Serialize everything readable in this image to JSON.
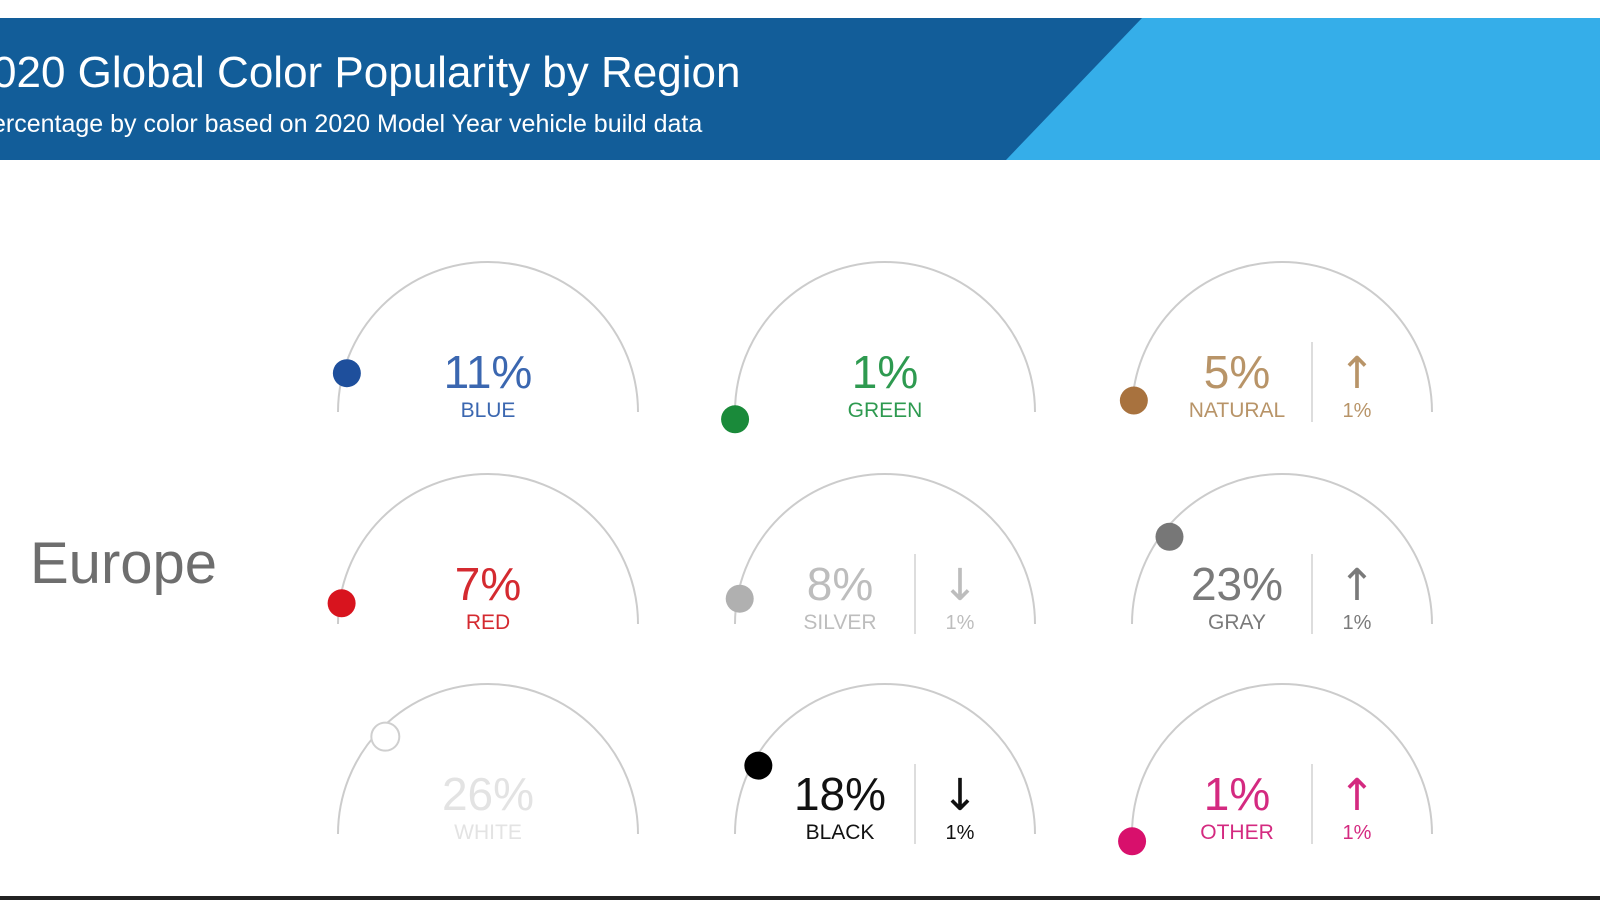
{
  "header": {
    "title": "020 Global Color Popularity by Region",
    "subtitle": "ercentage by color based on 2020 Model Year vehicle build data"
  },
  "region": "Europe",
  "colors": {
    "header_dark": "#125d99",
    "header_light": "#35aee9",
    "arc": "#cccccc"
  },
  "chart_data": {
    "type": "gauge",
    "region": "Europe",
    "unit": "%",
    "items": [
      {
        "label": "BLUE",
        "value": 11,
        "display": "11%",
        "color": "#1e4f9c",
        "text_color": "#3b67b0",
        "change_dir": null,
        "change": null
      },
      {
        "label": "GREEN",
        "value": 1,
        "display": "1%",
        "color": "#1a8a3a",
        "text_color": "#2e9a50",
        "change_dir": null,
        "change": null
      },
      {
        "label": "NATURAL",
        "value": 5,
        "display": "5%",
        "color": "#a8723e",
        "text_color": "#b89468",
        "change_dir": "up",
        "change": "1%"
      },
      {
        "label": "RED",
        "value": 7,
        "display": "7%",
        "color": "#d8141e",
        "text_color": "#d42a30",
        "change_dir": null,
        "change": null
      },
      {
        "label": "SILVER",
        "value": 8,
        "display": "8%",
        "color": "#b0b0b0",
        "text_color": "#bdbdbd",
        "change_dir": "down",
        "change": "1%"
      },
      {
        "label": "GRAY",
        "value": 23,
        "display": "23%",
        "color": "#777777",
        "text_color": "#7a7a7a",
        "change_dir": "up",
        "change": "1%"
      },
      {
        "label": "WHITE",
        "value": 26,
        "display": "26%",
        "color": "#ffffff",
        "text_color": "#e3e3e3",
        "change_dir": null,
        "change": null
      },
      {
        "label": "BLACK",
        "value": 18,
        "display": "18%",
        "color": "#000000",
        "text_color": "#111111",
        "change_dir": "down",
        "change": "1%"
      },
      {
        "label": "OTHER",
        "value": 1,
        "display": "1%",
        "color": "#d8106c",
        "text_color": "#d42a80",
        "change_dir": "up",
        "change": "1%"
      }
    ]
  }
}
